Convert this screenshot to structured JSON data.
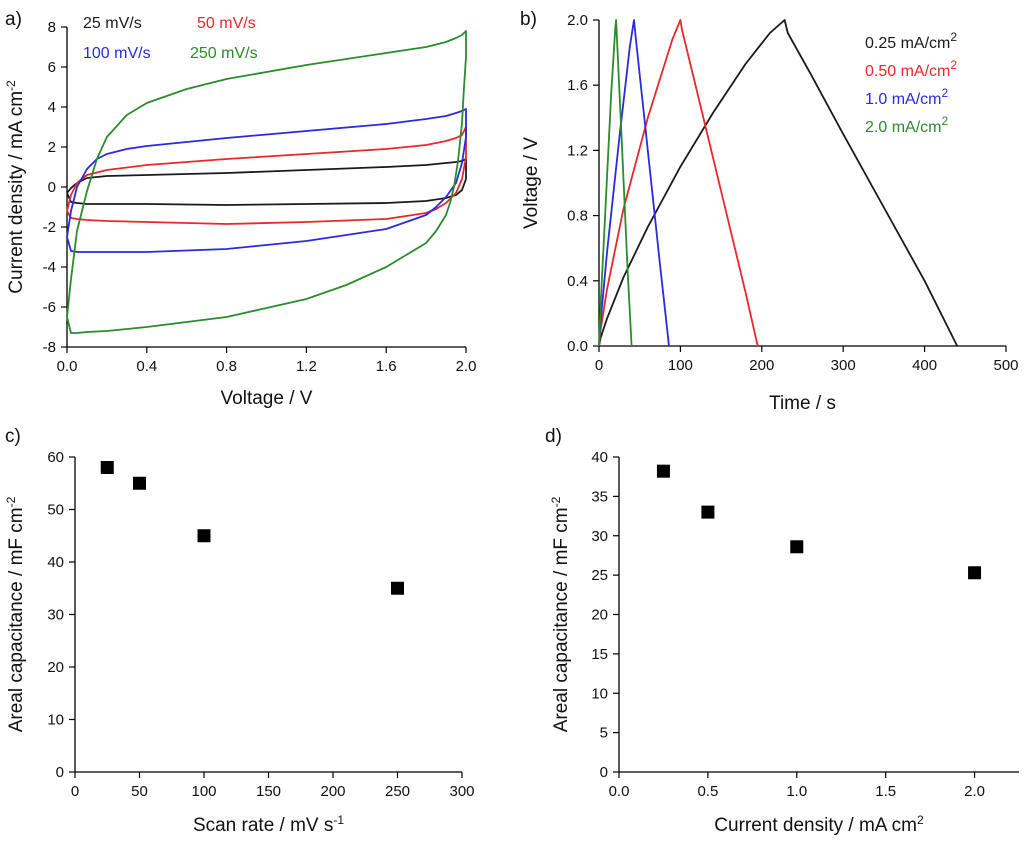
{
  "chart_data": [
    {
      "panel_label": "a)",
      "type": "line",
      "xlabel": "Voltage / V",
      "ylabel_main": "Current density / mA cm",
      "ylabel_sup": "-2",
      "xlim": [
        0,
        2.0
      ],
      "ylim": [
        -8,
        8
      ],
      "x_ticks": [
        "0.0",
        "0.4",
        "0.8",
        "1.2",
        "1.6",
        "2.0"
      ],
      "y_ticks": [
        "-8",
        "-6",
        "-4",
        "-2",
        "0",
        "2",
        "4",
        "6",
        "8"
      ],
      "legend_position": "top-left",
      "series": [
        {
          "name": "25 mV/s",
          "color": "#1a1a1a",
          "x": [
            0.0,
            0.02,
            0.05,
            0.1,
            0.2,
            0.4,
            0.8,
            1.2,
            1.6,
            1.8,
            1.9,
            1.95,
            1.98,
            2.0,
            2.0,
            1.98,
            1.95,
            1.9,
            1.8,
            1.6,
            1.2,
            0.8,
            0.4,
            0.2,
            0.1,
            0.05,
            0.02,
            0.0
          ],
          "y": [
            -0.3,
            -0.05,
            0.2,
            0.45,
            0.55,
            0.6,
            0.7,
            0.85,
            1.0,
            1.1,
            1.2,
            1.25,
            1.3,
            1.4,
            0.4,
            -0.15,
            -0.4,
            -0.55,
            -0.7,
            -0.8,
            -0.85,
            -0.9,
            -0.85,
            -0.85,
            -0.85,
            -0.8,
            -0.75,
            -0.3
          ]
        },
        {
          "name": "50 mV/s",
          "color": "#e8282a",
          "x": [
            0.0,
            0.02,
            0.05,
            0.1,
            0.2,
            0.4,
            0.8,
            1.2,
            1.6,
            1.8,
            1.9,
            1.95,
            1.98,
            2.0,
            2.0,
            1.98,
            1.95,
            1.9,
            1.85,
            1.8,
            1.6,
            1.2,
            0.8,
            0.4,
            0.2,
            0.1,
            0.05,
            0.02,
            0.0
          ],
          "y": [
            -1.2,
            -0.4,
            0.2,
            0.6,
            0.85,
            1.1,
            1.4,
            1.65,
            1.9,
            2.1,
            2.3,
            2.45,
            2.6,
            3.0,
            1.5,
            0.4,
            -0.3,
            -0.8,
            -1.1,
            -1.3,
            -1.6,
            -1.75,
            -1.85,
            -1.75,
            -1.7,
            -1.65,
            -1.6,
            -1.55,
            -1.2
          ]
        },
        {
          "name": "100 mV/s",
          "color": "#2a2ae0",
          "x": [
            0.0,
            0.02,
            0.05,
            0.1,
            0.15,
            0.2,
            0.3,
            0.4,
            0.8,
            1.2,
            1.6,
            1.8,
            1.9,
            1.95,
            1.98,
            2.0,
            2.0,
            1.98,
            1.95,
            1.9,
            1.85,
            1.8,
            1.6,
            1.2,
            0.8,
            0.4,
            0.2,
            0.1,
            0.05,
            0.02,
            0.0
          ],
          "y": [
            -2.5,
            -1.2,
            0.0,
            0.9,
            1.4,
            1.65,
            1.9,
            2.05,
            2.45,
            2.8,
            3.15,
            3.4,
            3.55,
            3.7,
            3.8,
            3.9,
            2.5,
            1.2,
            0.2,
            -0.5,
            -1.0,
            -1.4,
            -2.1,
            -2.7,
            -3.1,
            -3.25,
            -3.25,
            -3.25,
            -3.25,
            -3.2,
            -2.5
          ]
        },
        {
          "name": "250 mV/s",
          "color": "#2a8c2a",
          "x": [
            0.0,
            0.02,
            0.05,
            0.1,
            0.15,
            0.2,
            0.3,
            0.4,
            0.6,
            0.8,
            1.2,
            1.6,
            1.8,
            1.9,
            1.95,
            1.98,
            2.0,
            2.0,
            1.99,
            1.98,
            1.96,
            1.94,
            1.92,
            1.9,
            1.85,
            1.8,
            1.6,
            1.4,
            1.2,
            0.8,
            0.4,
            0.2,
            0.1,
            0.05,
            0.02,
            0.0
          ],
          "y": [
            -6.5,
            -4.6,
            -2.2,
            -0.2,
            1.4,
            2.5,
            3.6,
            4.2,
            4.9,
            5.4,
            6.1,
            6.7,
            7.0,
            7.25,
            7.45,
            7.6,
            7.8,
            6.5,
            5.0,
            3.2,
            1.3,
            0.0,
            -0.8,
            -1.4,
            -2.2,
            -2.8,
            -4.0,
            -4.9,
            -5.6,
            -6.5,
            -7.0,
            -7.2,
            -7.25,
            -7.3,
            -7.3,
            -6.5
          ]
        }
      ]
    },
    {
      "panel_label": "b)",
      "type": "line",
      "xlabel": "Time / s",
      "ylabel_main": "Voltage / V",
      "xlim": [
        0,
        500
      ],
      "ylim": [
        0,
        2.0
      ],
      "x_ticks": [
        "0",
        "100",
        "200",
        "300",
        "400",
        "500"
      ],
      "y_ticks": [
        "0.0",
        "0.4",
        "0.8",
        "1.2",
        "1.6",
        "2.0"
      ],
      "legend_position": "top-right",
      "series": [
        {
          "name": "0.25 mA/cm",
          "name_sup": "2",
          "color": "#1a1a1a",
          "x": [
            0,
            2,
            10,
            30,
            60,
            100,
            140,
            180,
            210,
            228,
            232,
            260,
            300,
            350,
            400,
            440
          ],
          "y": [
            0.0,
            0.05,
            0.17,
            0.42,
            0.73,
            1.1,
            1.43,
            1.73,
            1.92,
            2.0,
            1.92,
            1.67,
            1.3,
            0.85,
            0.4,
            0.0
          ]
        },
        {
          "name": "0.50 mA/cm",
          "name_sup": "2",
          "color": "#e8282a",
          "x": [
            0,
            2,
            10,
            30,
            60,
            90,
            100,
            102,
            120,
            150,
            180,
            195
          ],
          "y": [
            0.0,
            0.1,
            0.35,
            0.84,
            1.4,
            1.88,
            2.0,
            1.94,
            1.57,
            0.95,
            0.33,
            0.0
          ]
        },
        {
          "name": "1.0 mA/cm",
          "name_sup": "2",
          "color": "#2a2ae0",
          "x": [
            0,
            2,
            10,
            25,
            38,
            43,
            45,
            60,
            75,
            86
          ],
          "y": [
            0.0,
            0.15,
            0.58,
            1.28,
            1.84,
            2.0,
            1.9,
            1.2,
            0.5,
            0.0
          ]
        },
        {
          "name": "2.0 mA/cm",
          "name_sup": "2",
          "color": "#2a8c2a",
          "x": [
            0,
            2,
            8,
            15,
            20,
            21,
            28,
            35,
            40
          ],
          "y": [
            0.0,
            0.25,
            0.85,
            1.55,
            1.95,
            2.0,
            1.25,
            0.48,
            0.0
          ]
        }
      ]
    },
    {
      "panel_label": "c)",
      "type": "scatter",
      "xlabel_main": "Scan rate / mV s",
      "xlabel_sup": "-1",
      "ylabel_main": "Areal capacitance / mF cm",
      "ylabel_sup": "-2",
      "xlim": [
        0,
        300
      ],
      "ylim": [
        0,
        60
      ],
      "x_ticks": [
        "0",
        "50",
        "100",
        "150",
        "200",
        "250",
        "300"
      ],
      "y_ticks": [
        "0",
        "10",
        "20",
        "30",
        "40",
        "50",
        "60"
      ],
      "series": [
        {
          "color": "#000000",
          "x": [
            25,
            50,
            100,
            250
          ],
          "y": [
            58,
            55,
            45,
            35
          ]
        }
      ]
    },
    {
      "panel_label": "d)",
      "type": "scatter",
      "xlabel_main": "Current density / mA cm",
      "xlabel_sup": "2",
      "ylabel_main": "Areal capacitance / mF cm",
      "ylabel_sup": "-2",
      "xlim": [
        0,
        2.25
      ],
      "ylim": [
        0,
        40
      ],
      "x_ticks": [
        "0.0",
        "0.5",
        "1.0",
        "1.5",
        "2.0"
      ],
      "y_ticks": [
        "0",
        "5",
        "10",
        "15",
        "20",
        "25",
        "30",
        "35",
        "40"
      ],
      "series": [
        {
          "color": "#000000",
          "x": [
            0.25,
            0.5,
            1.0,
            2.0
          ],
          "y": [
            38.2,
            33.0,
            28.6,
            25.3
          ]
        }
      ]
    }
  ]
}
